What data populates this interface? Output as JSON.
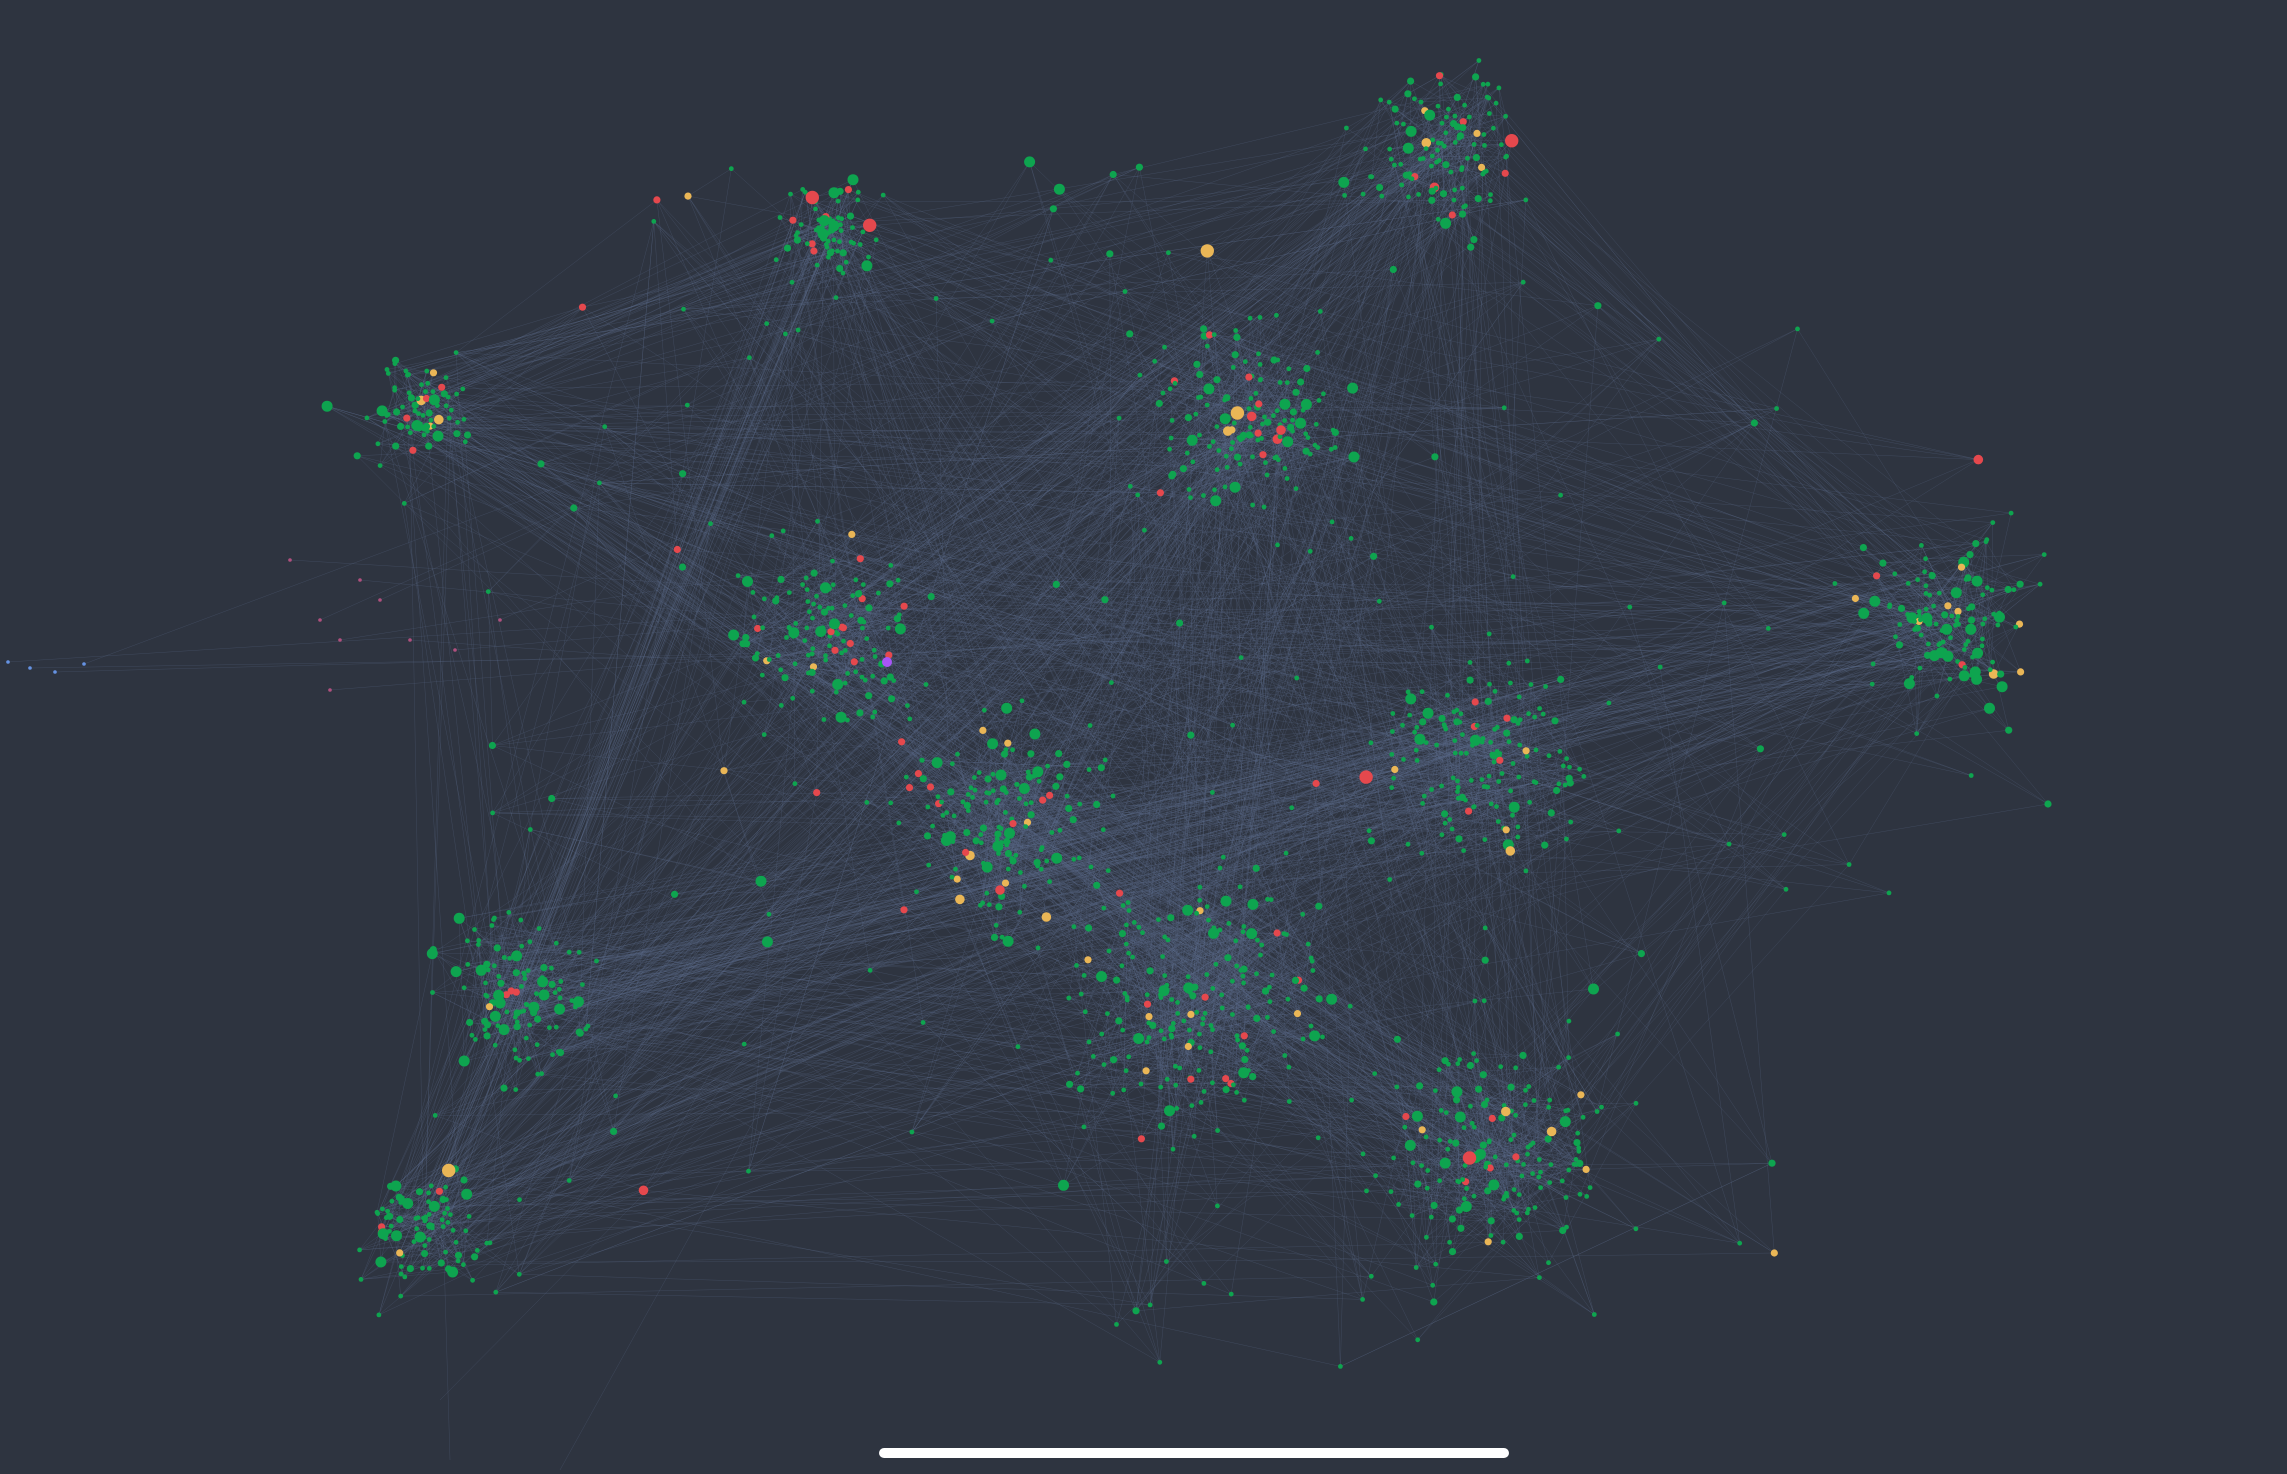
{
  "graph": {
    "background_color": "#2e3440",
    "edge_color": "#5b6b8c",
    "node_categories": [
      {
        "key": "primary",
        "color": "#0ea44f"
      },
      {
        "key": "warning",
        "color": "#eab656"
      },
      {
        "key": "alert",
        "color": "#e5484d"
      },
      {
        "key": "selected",
        "color": "#a855f7"
      },
      {
        "key": "outlier",
        "color": "#c7568a"
      },
      {
        "key": "isolated",
        "color": "#6fa3ff"
      }
    ]
  },
  "home_indicator": {
    "color": "#ffffff"
  }
}
